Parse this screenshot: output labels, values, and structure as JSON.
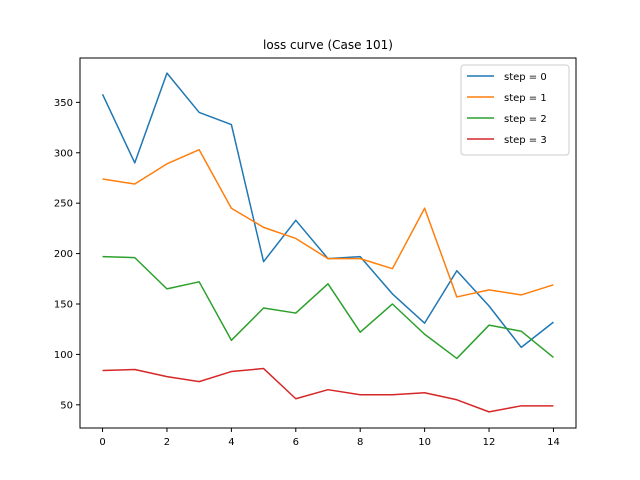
{
  "chart_data": {
    "type": "line",
    "title": "loss curve (Case 101)",
    "xlabel": "",
    "ylabel": "",
    "x": [
      0,
      1,
      2,
      3,
      4,
      5,
      6,
      7,
      8,
      9,
      10,
      11,
      12,
      13,
      14
    ],
    "xlim": [
      -0.7,
      14.7
    ],
    "ylim": [
      27,
      394
    ],
    "xticks": [
      0,
      2,
      4,
      6,
      8,
      10,
      12,
      14
    ],
    "yticks": [
      50,
      100,
      150,
      200,
      250,
      300,
      350
    ],
    "grid": false,
    "legend_position": "top-right",
    "series": [
      {
        "name": "step = 0",
        "color": "#1f77b4",
        "values": [
          358,
          290,
          379,
          340,
          328,
          192,
          233,
          195,
          197,
          160,
          131,
          183,
          148,
          107,
          132
        ]
      },
      {
        "name": "step = 1",
        "color": "#ff7f0e",
        "values": [
          274,
          269,
          289,
          303,
          245,
          226,
          215,
          195,
          195,
          185,
          245,
          157,
          164,
          159,
          169
        ]
      },
      {
        "name": "step = 2",
        "color": "#2ca02c",
        "values": [
          197,
          196,
          165,
          172,
          114,
          146,
          141,
          170,
          122,
          150,
          120,
          96,
          129,
          123,
          97
        ]
      },
      {
        "name": "step = 3",
        "color": "#d62728",
        "values": [
          84,
          85,
          78,
          73,
          83,
          86,
          56,
          65,
          60,
          60,
          62,
          55,
          43,
          49,
          49
        ]
      }
    ]
  }
}
